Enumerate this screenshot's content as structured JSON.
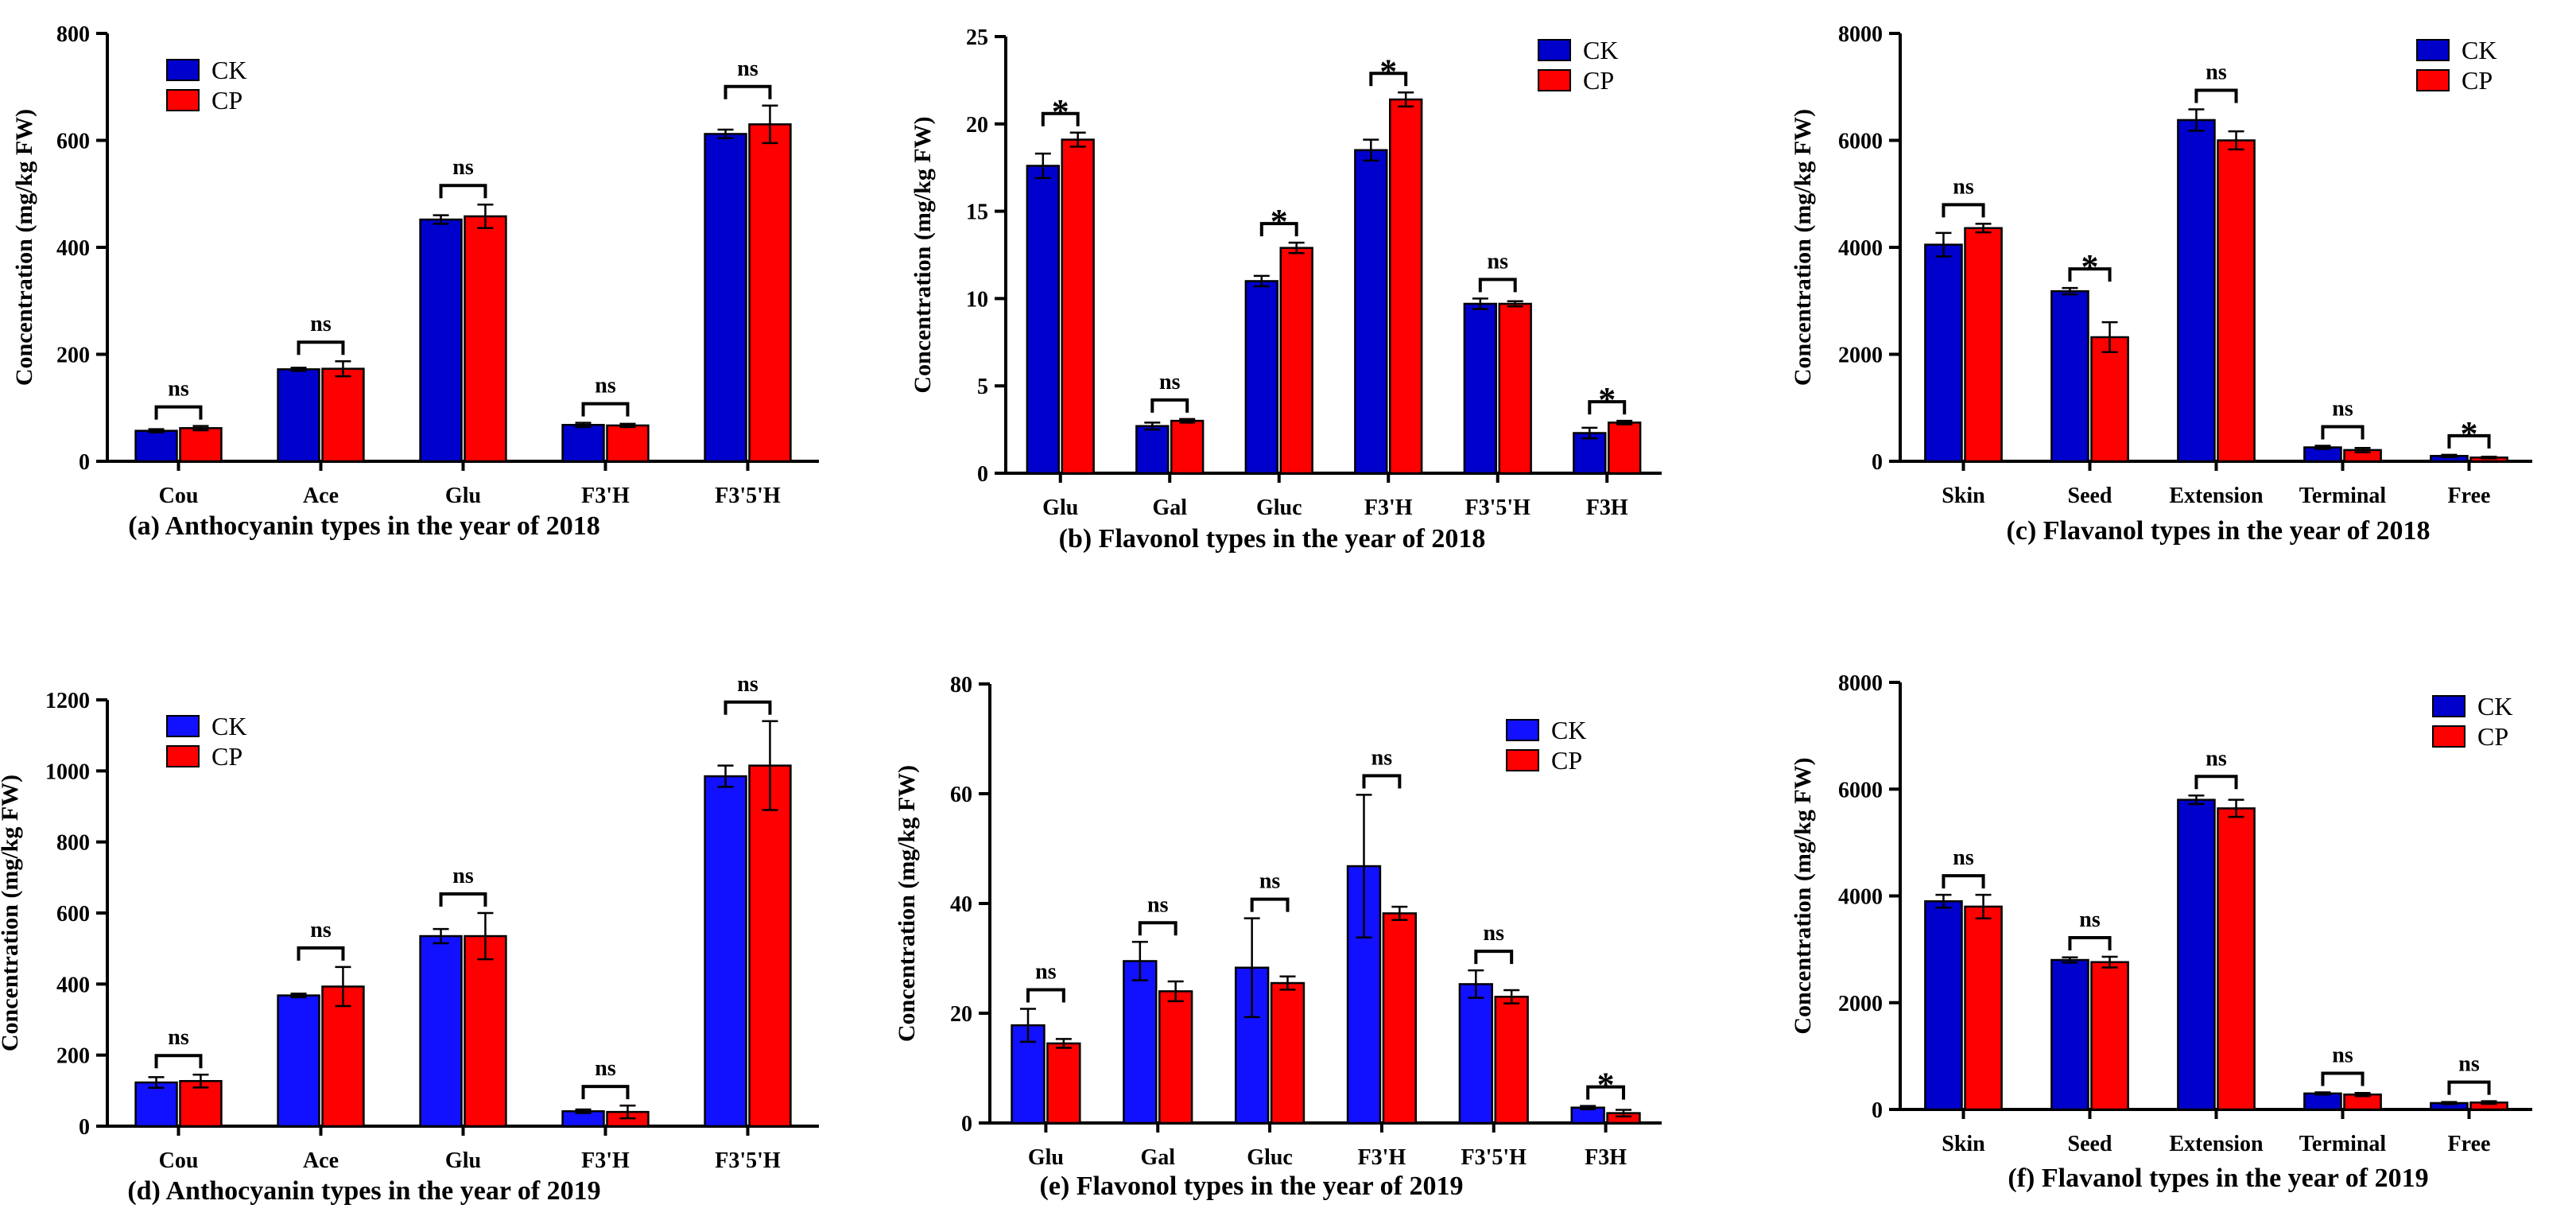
{
  "colors": {
    "ck": "#0000CC",
    "cp": "#FF0000",
    "ck_light": "#1111FF"
  },
  "chart_data": [
    {
      "type": "bar",
      "caption": "(a) Anthocyanin types in the year of 2018",
      "ylabel": "Concentration (mg/kg FW)",
      "ylim": [
        0,
        800
      ],
      "yticks": [
        0,
        200,
        400,
        600,
        800
      ],
      "categories": [
        "Cou",
        "Ace",
        "Glu",
        "F3'H",
        "F3'5'H"
      ],
      "series": [
        {
          "name": "CK",
          "values": [
            57,
            172,
            452,
            68,
            612
          ],
          "errors": [
            3,
            3,
            8,
            4,
            8
          ]
        },
        {
          "name": "CP",
          "values": [
            62,
            173,
            458,
            67,
            630
          ],
          "errors": [
            4,
            14,
            22,
            3,
            35
          ]
        }
      ],
      "significance": [
        "ns",
        "ns",
        "ns",
        "ns",
        "ns"
      ],
      "legend": "top-left"
    },
    {
      "type": "bar",
      "caption": "(b) Flavonol types in the year of 2018",
      "ylabel": "Concentration (mg/kg FW)",
      "ylim": [
        0,
        25
      ],
      "yticks": [
        0,
        5,
        10,
        15,
        20,
        25
      ],
      "categories": [
        "Glu",
        "Gal",
        "Gluc",
        "F3'H",
        "F3'5'H",
        "F3H"
      ],
      "series": [
        {
          "name": "CK",
          "values": [
            17.6,
            2.7,
            11.0,
            18.5,
            9.7,
            2.3
          ],
          "errors": [
            0.7,
            0.2,
            0.3,
            0.6,
            0.3,
            0.3
          ]
        },
        {
          "name": "CP",
          "values": [
            19.1,
            3.0,
            12.9,
            21.4,
            9.7,
            2.9
          ],
          "errors": [
            0.4,
            0.1,
            0.3,
            0.4,
            0.15,
            0.1
          ]
        }
      ],
      "significance": [
        "*",
        "ns",
        "*",
        "*",
        "ns",
        "*"
      ],
      "legend": "top-right"
    },
    {
      "type": "bar",
      "caption": "(c) Flavanol types in the year of 2018",
      "ylabel": "Concentration (mg/kg FW)",
      "ylim": [
        0,
        8000
      ],
      "yticks": [
        0,
        2000,
        4000,
        6000,
        8000
      ],
      "categories": [
        "Skin",
        "Seed",
        "Extension",
        "Terminal",
        "Free"
      ],
      "series": [
        {
          "name": "CK",
          "values": [
            4050,
            3180,
            6380,
            260,
            100
          ],
          "errors": [
            220,
            60,
            200,
            30,
            20
          ]
        },
        {
          "name": "CP",
          "values": [
            4360,
            2320,
            6000,
            210,
            70
          ],
          "errors": [
            80,
            280,
            170,
            40,
            15
          ]
        }
      ],
      "significance": [
        "ns",
        "*",
        "ns",
        "ns",
        "*"
      ],
      "legend": "top-right"
    },
    {
      "type": "bar",
      "caption": "(d) Anthocyanin types in the year of 2019",
      "ylabel": "Concentration (mg/kg FW)",
      "ylim": [
        0,
        1200
      ],
      "yticks": [
        0,
        200,
        400,
        600,
        800,
        1000,
        1200
      ],
      "categories": [
        "Cou",
        "Ace",
        "Glu",
        "F3'H",
        "F3'5'H"
      ],
      "series": [
        {
          "name": "CK",
          "values": [
            123,
            368,
            535,
            42,
            985
          ],
          "errors": [
            15,
            5,
            20,
            5,
            30
          ]
        },
        {
          "name": "CP",
          "values": [
            127,
            393,
            535,
            40,
            1015
          ],
          "errors": [
            18,
            55,
            65,
            18,
            125
          ]
        }
      ],
      "significance": [
        "ns",
        "ns",
        "ns",
        "ns",
        "ns"
      ],
      "legend": "top-left"
    },
    {
      "type": "bar",
      "caption": "(e) Flavonol types in the year of 2019",
      "ylabel": "Concentration (mg/kg FW)",
      "ylim": [
        0,
        80
      ],
      "yticks": [
        0,
        20,
        40,
        60,
        80
      ],
      "categories": [
        "Glu",
        "Gal",
        "Gluc",
        "F3'H",
        "F3'5'H",
        "F3H"
      ],
      "series": [
        {
          "name": "CK",
          "values": [
            17.8,
            29.5,
            28.3,
            46.8,
            25.3,
            2.8
          ],
          "errors": [
            3,
            3.5,
            9,
            13,
            2.5,
            0.3
          ]
        },
        {
          "name": "CP",
          "values": [
            14.5,
            24.0,
            25.5,
            38.2,
            23.0,
            1.8
          ],
          "errors": [
            0.8,
            1.8,
            1.2,
            1.2,
            1.2,
            0.6
          ]
        }
      ],
      "significance": [
        "ns",
        "ns",
        "ns",
        "ns",
        "ns",
        "*"
      ],
      "legend": "top-right"
    },
    {
      "type": "bar",
      "caption": "(f) Flavanol types in the year of 2019",
      "ylabel": "Concentration (mg/kg FW)",
      "ylim": [
        0,
        8000
      ],
      "yticks": [
        0,
        2000,
        4000,
        6000,
        8000
      ],
      "categories": [
        "Skin",
        "Seed",
        "Extension",
        "Terminal",
        "Free"
      ],
      "series": [
        {
          "name": "CK",
          "values": [
            3900,
            2800,
            5800,
            300,
            120
          ],
          "errors": [
            120,
            50,
            80,
            20,
            20
          ]
        },
        {
          "name": "CP",
          "values": [
            3800,
            2760,
            5640,
            280,
            130
          ],
          "errors": [
            220,
            100,
            160,
            30,
            25
          ]
        }
      ],
      "significance": [
        "ns",
        "ns",
        "ns",
        "ns",
        "ns"
      ],
      "legend": "top-right"
    }
  ]
}
